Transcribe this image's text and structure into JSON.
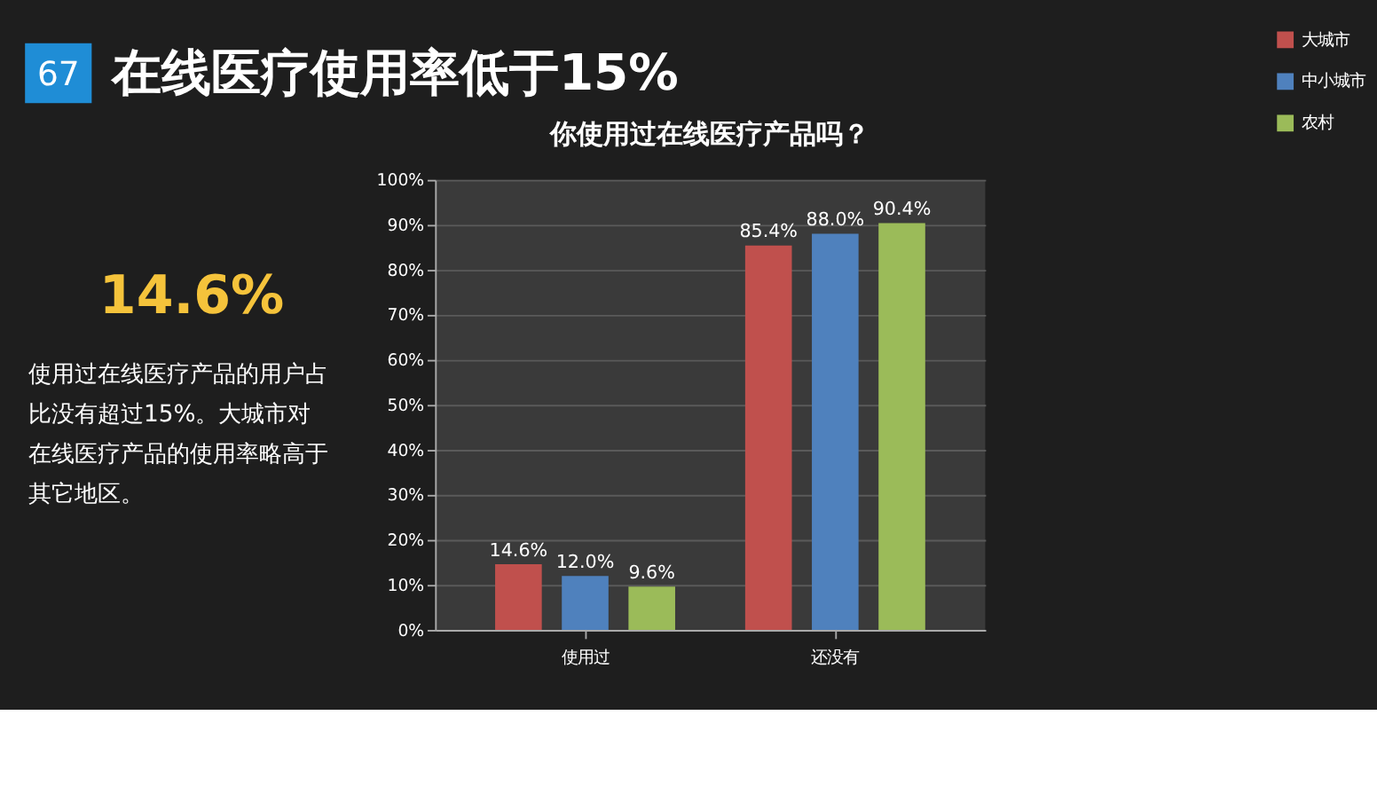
{
  "chart_data": [
    {
      "type": "other",
      "title": "在线医疗使用率低于15%",
      "annotations": [
        "67",
        "14.6%",
        "使用过在线医疗产品的用户占比没有超过15%。大城市对在线医疗产品的使用率略高于其它地区。"
      ]
    },
    {
      "type": "bar",
      "title": "你使用过在线医疗产品吗？",
      "categories": [
        "使用过",
        "还没有"
      ],
      "series": [
        {
          "name": "大城市",
          "color": "#c0504d",
          "values": [
            14.6,
            85.4
          ]
        },
        {
          "name": "中小城市",
          "color": "#4f81bd",
          "values": [
            12.0,
            88.0
          ]
        },
        {
          "name": "农村",
          "color": "#9bbb59",
          "values": [
            9.6,
            90.4
          ]
        }
      ],
      "value_labels": [
        [
          "14.6%",
          "85.4%"
        ],
        [
          "12.0%",
          "88.0%"
        ],
        [
          "9.6%",
          "90.4%"
        ]
      ],
      "ylim": [
        0,
        100
      ],
      "yticks": [
        {
          "value": 0,
          "label": "0%"
        },
        {
          "value": 10,
          "label": "10%"
        },
        {
          "value": 20,
          "label": "20%"
        },
        {
          "value": 30,
          "label": "30%"
        },
        {
          "value": 40,
          "label": "40%"
        },
        {
          "value": 50,
          "label": "50%"
        },
        {
          "value": 60,
          "label": "60%"
        },
        {
          "value": 70,
          "label": "70%"
        },
        {
          "value": 80,
          "label": "80%"
        },
        {
          "value": 90,
          "label": "90%"
        },
        {
          "value": 100,
          "label": "100%"
        }
      ],
      "grid": "y",
      "legend": "right"
    }
  ]
}
